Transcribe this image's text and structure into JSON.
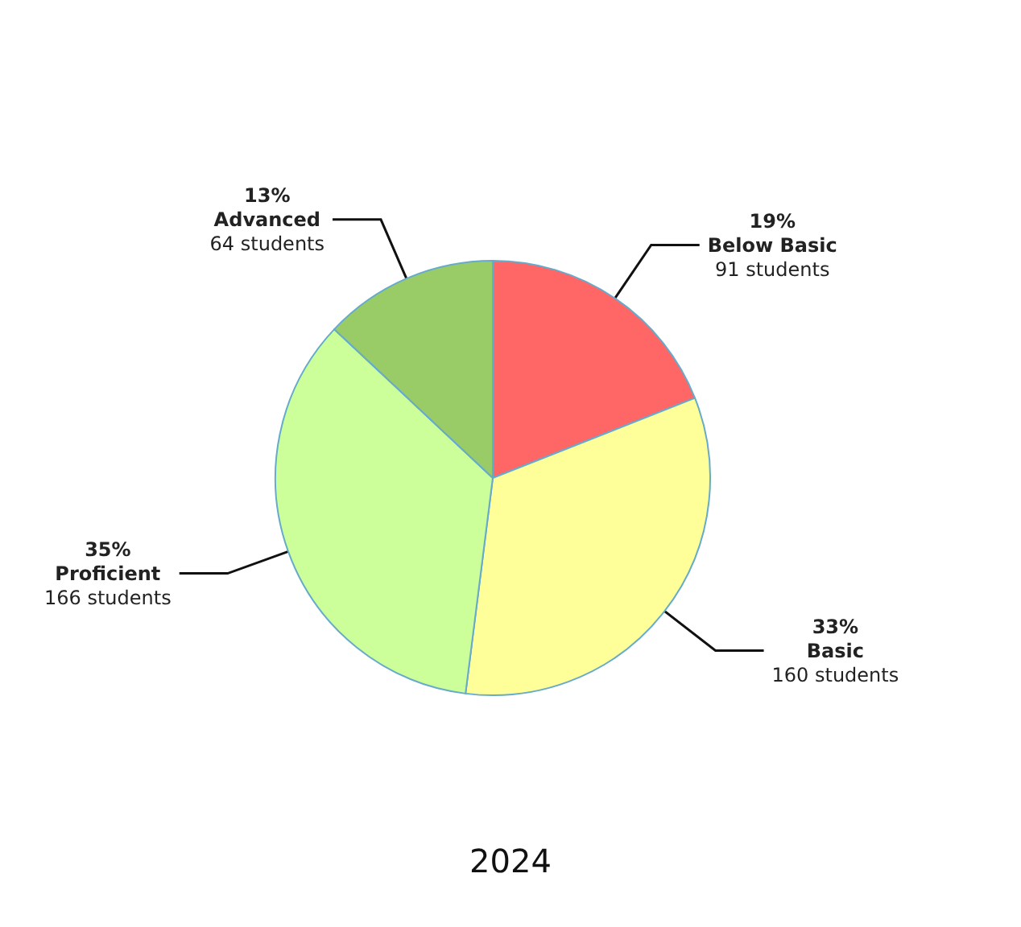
{
  "chart_data": {
    "type": "pie",
    "title": "2024",
    "categories": [
      "Below Basic",
      "Basic",
      "Proficient",
      "Advanced"
    ],
    "values": [
      19,
      33,
      35,
      13
    ],
    "value_labels": [
      "19%\n91 students",
      "33%\n160 students",
      "35%\n166 students",
      "13%\n64 students"
    ],
    "colors": [
      "#ff6666",
      "#ffff99",
      "#ccff99",
      "#99cc66"
    ],
    "legend": false
  }
}
